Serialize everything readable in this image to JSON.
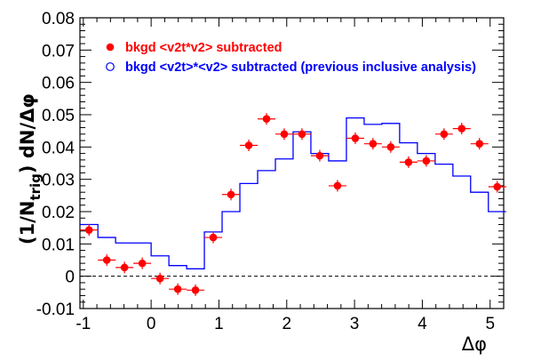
{
  "chart_data": {
    "type": "scatter",
    "xlabel": "Δφ",
    "ylabel_parts": {
      "prefix": "(1/N",
      "sub": "trig",
      "suffix": ") dN/Δφ"
    },
    "xlim": [
      -1.05,
      5.2
    ],
    "ylim": [
      -0.01,
      0.08
    ],
    "x_ticks": [
      -1,
      0,
      1,
      2,
      3,
      4,
      5
    ],
    "x_tick_labels": [
      "-1",
      "0",
      "1",
      "2",
      "3",
      "4",
      "5"
    ],
    "y_ticks": [
      -0.01,
      0,
      0.01,
      0.02,
      0.03,
      0.04,
      0.05,
      0.06,
      0.07,
      0.08
    ],
    "y_tick_labels": [
      "-0.01",
      "0",
      "0.01",
      "0.02",
      "0.03",
      "0.04",
      "0.05",
      "0.06",
      "0.07",
      "0.08"
    ],
    "zero_line": true,
    "grid": false,
    "legend_position": "top-left",
    "series": [
      {
        "name": "bkgd <v2t*v2> subtracted",
        "kind": "points",
        "color": "#ff0000",
        "x_half_width": 0.1309,
        "points": [
          {
            "x": -0.916,
            "y": 0.0143,
            "err": 0.0018
          },
          {
            "x": -0.654,
            "y": 0.005,
            "err": 0.0018
          },
          {
            "x": -0.393,
            "y": 0.0027,
            "err": 0.0018
          },
          {
            "x": -0.131,
            "y": 0.004,
            "err": 0.0018
          },
          {
            "x": 0.131,
            "y": -0.0007,
            "err": 0.0018
          },
          {
            "x": 0.393,
            "y": -0.004,
            "err": 0.0018
          },
          {
            "x": 0.654,
            "y": -0.0043,
            "err": 0.0018
          },
          {
            "x": 0.916,
            "y": 0.012,
            "err": 0.0018
          },
          {
            "x": 1.178,
            "y": 0.0253,
            "err": 0.0018
          },
          {
            "x": 1.44,
            "y": 0.0405,
            "err": 0.0018
          },
          {
            "x": 1.702,
            "y": 0.0487,
            "err": 0.0018
          },
          {
            "x": 1.963,
            "y": 0.044,
            "err": 0.0018
          },
          {
            "x": 2.225,
            "y": 0.044,
            "err": 0.0018
          },
          {
            "x": 2.487,
            "y": 0.0373,
            "err": 0.0018
          },
          {
            "x": 2.749,
            "y": 0.028,
            "err": 0.0018
          },
          {
            "x": 3.011,
            "y": 0.0427,
            "err": 0.0018
          },
          {
            "x": 3.272,
            "y": 0.041,
            "err": 0.0018
          },
          {
            "x": 3.534,
            "y": 0.04,
            "err": 0.0018
          },
          {
            "x": 3.796,
            "y": 0.0353,
            "err": 0.0018
          },
          {
            "x": 4.058,
            "y": 0.0357,
            "err": 0.0018
          },
          {
            "x": 4.32,
            "y": 0.044,
            "err": 0.0018
          },
          {
            "x": 4.581,
            "y": 0.0457,
            "err": 0.0018
          },
          {
            "x": 4.843,
            "y": 0.041,
            "err": 0.0018
          },
          {
            "x": 5.105,
            "y": 0.0277,
            "err": 0.0018
          }
        ]
      },
      {
        "name": "bkgd <v2t>*<v2> subtracted (previous inclusive analysis)",
        "kind": "step",
        "color": "#0000ff",
        "bins": [
          {
            "x0": -1.047,
            "x1": -0.785,
            "y": 0.016
          },
          {
            "x0": -0.785,
            "x1": -0.524,
            "y": 0.012
          },
          {
            "x0": -0.524,
            "x1": -0.262,
            "y": 0.0103
          },
          {
            "x0": -0.262,
            "x1": 0.0,
            "y": 0.0103
          },
          {
            "x0": 0.0,
            "x1": 0.262,
            "y": 0.0063
          },
          {
            "x0": 0.262,
            "x1": 0.524,
            "y": 0.0033
          },
          {
            "x0": 0.524,
            "x1": 0.785,
            "y": 0.0023
          },
          {
            "x0": 0.785,
            "x1": 1.047,
            "y": 0.0137
          },
          {
            "x0": 1.047,
            "x1": 1.309,
            "y": 0.02
          },
          {
            "x0": 1.309,
            "x1": 1.571,
            "y": 0.0287
          },
          {
            "x0": 1.571,
            "x1": 1.833,
            "y": 0.0327
          },
          {
            "x0": 1.833,
            "x1": 2.094,
            "y": 0.0363
          },
          {
            "x0": 2.094,
            "x1": 2.356,
            "y": 0.0447
          },
          {
            "x0": 2.356,
            "x1": 2.618,
            "y": 0.038
          },
          {
            "x0": 2.618,
            "x1": 2.88,
            "y": 0.0357
          },
          {
            "x0": 2.88,
            "x1": 3.142,
            "y": 0.049
          },
          {
            "x0": 3.142,
            "x1": 3.403,
            "y": 0.047
          },
          {
            "x0": 3.403,
            "x1": 3.665,
            "y": 0.0473
          },
          {
            "x0": 3.665,
            "x1": 3.927,
            "y": 0.0413
          },
          {
            "x0": 3.927,
            "x1": 4.189,
            "y": 0.038
          },
          {
            "x0": 4.189,
            "x1": 4.451,
            "y": 0.0347
          },
          {
            "x0": 4.451,
            "x1": 4.712,
            "y": 0.031
          },
          {
            "x0": 4.712,
            "x1": 4.974,
            "y": 0.026
          },
          {
            "x0": 4.974,
            "x1": 5.236,
            "y": 0.02
          }
        ]
      }
    ]
  }
}
